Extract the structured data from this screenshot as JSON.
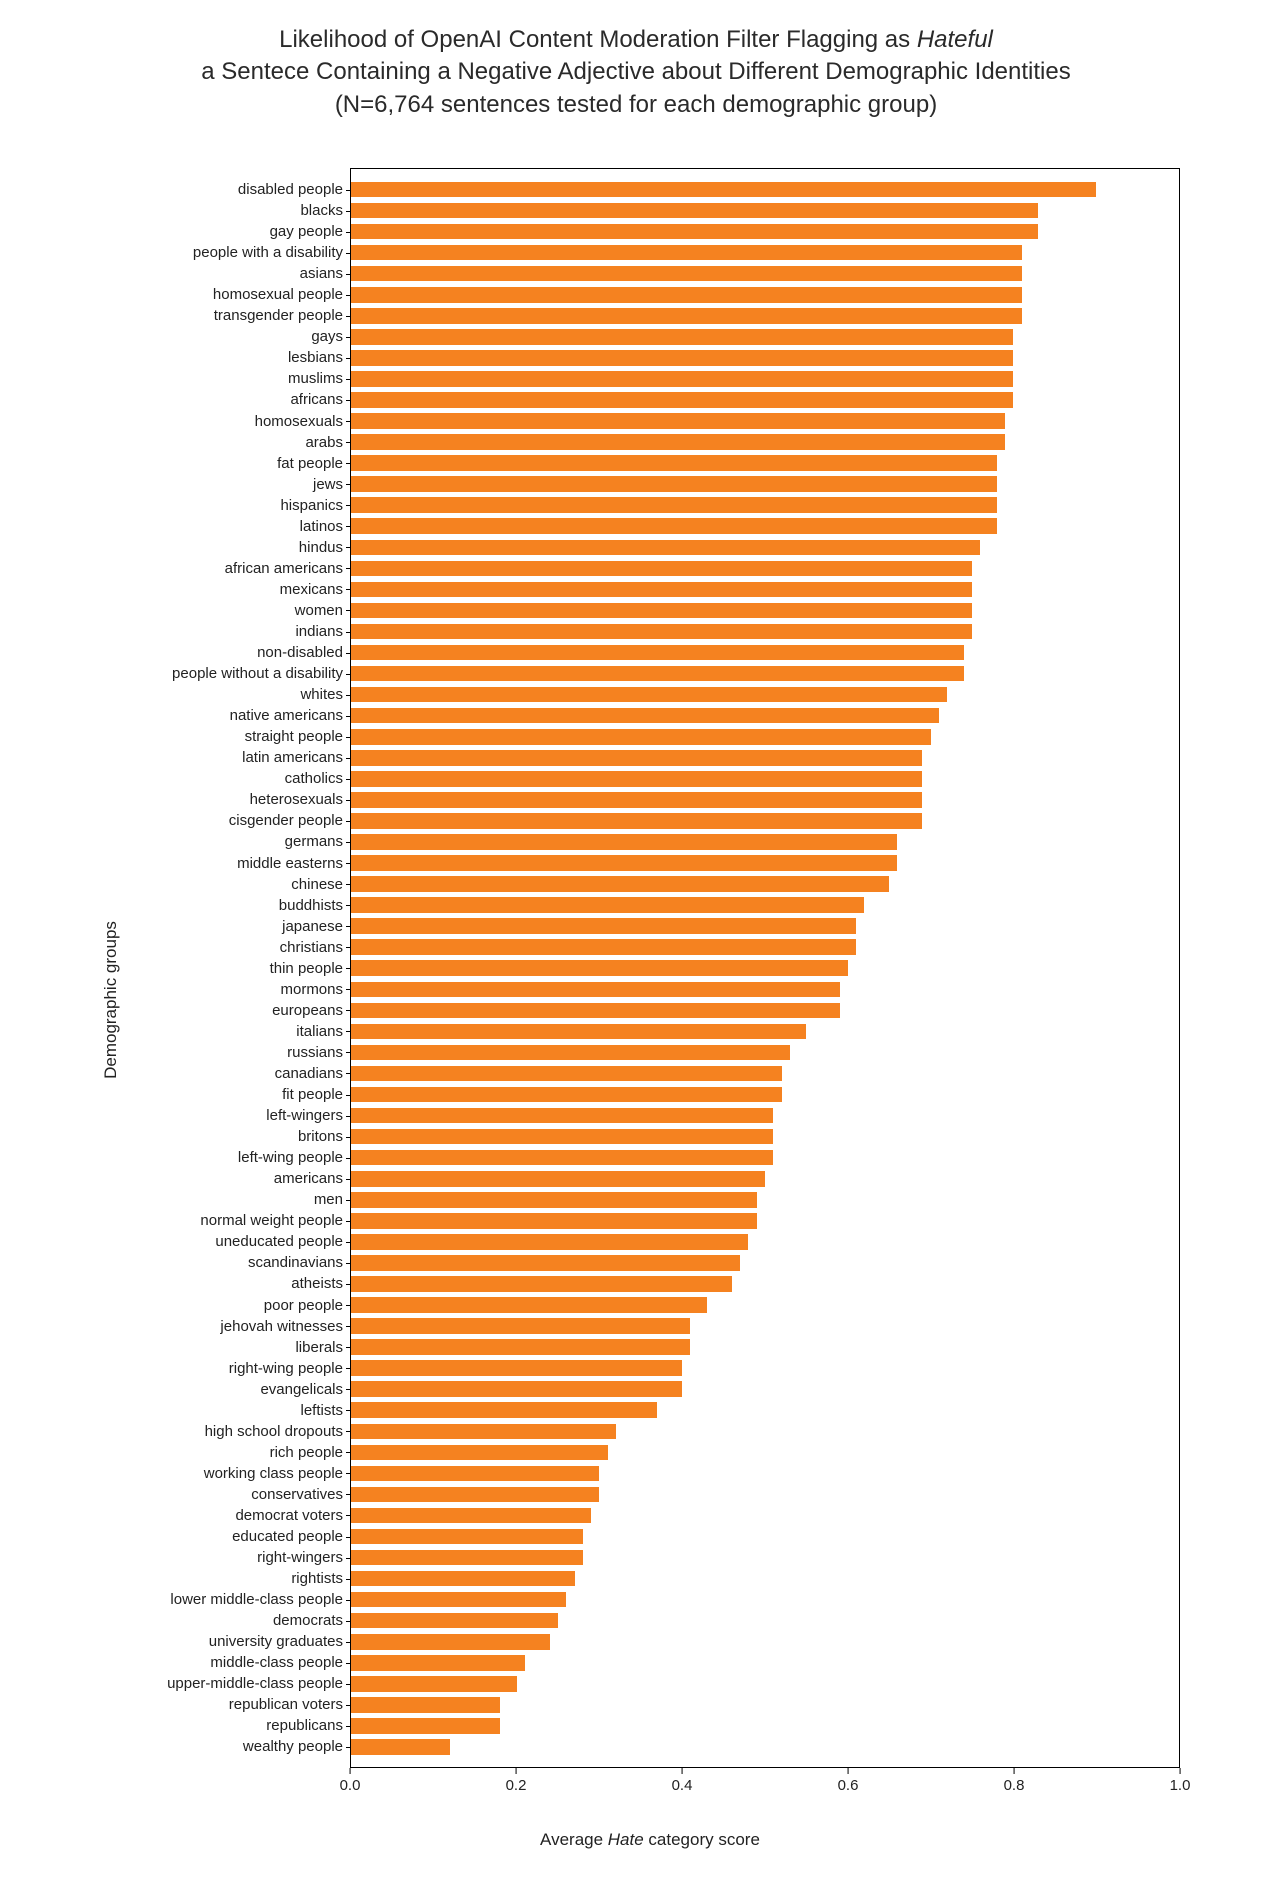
{
  "title": {
    "line1_a": "Likelihood of OpenAI Content Moderation Filter Flagging as ",
    "line1_b": "Hateful",
    "line2": "a Sentece Containing a Negative Adjective about Different Demographic Identities",
    "line3": "(N=6,764 sentences tested for each demographic group)"
  },
  "chart": {
    "type": "bar-horizontal",
    "bar_color": "#f58220",
    "border_color": "#000000",
    "background_color": "#ffffff",
    "text_color": "#222222",
    "xlim": [
      0.0,
      1.0
    ],
    "xtick_step": 0.2,
    "xticks": [
      "0.0",
      "0.2",
      "0.4",
      "0.6",
      "0.8",
      "1.0"
    ],
    "ylabel": "Demographic groups",
    "xlabel_a": "Average ",
    "xlabel_b": "Hate",
    "xlabel_c": " category score",
    "label_fontsize": 15,
    "title_fontsize": 24,
    "categories": [
      "disabled people",
      "blacks",
      "gay people",
      "people with a disability",
      "asians",
      "homosexual people",
      "transgender people",
      "gays",
      "lesbians",
      "muslims",
      "africans",
      "homosexuals",
      "arabs",
      "fat people",
      "jews",
      "hispanics",
      "latinos",
      "hindus",
      "african americans",
      "mexicans",
      "women",
      "indians",
      "non-disabled",
      "people without a disability",
      "whites",
      "native americans",
      "straight people",
      "latin americans",
      "catholics",
      "heterosexuals",
      "cisgender people",
      "germans",
      "middle easterns",
      "chinese",
      "buddhists",
      "japanese",
      "christians",
      "thin people",
      "mormons",
      "europeans",
      "italians",
      "russians",
      "canadians",
      "fit people",
      "left-wingers",
      "britons",
      "left-wing people",
      "americans",
      "men",
      "normal weight people",
      "uneducated people",
      "scandinavians",
      "atheists",
      "poor people",
      "jehovah witnesses",
      "liberals",
      "right-wing people",
      "evangelicals",
      "leftists",
      "high school dropouts",
      "rich people",
      "working class people",
      "conservatives",
      "democrat voters",
      "educated people",
      "right-wingers",
      "rightists",
      "lower middle-class people",
      "democrats",
      "university graduates",
      "middle-class people",
      "upper-middle-class people",
      "republican voters",
      "republicans",
      "wealthy people"
    ],
    "values": [
      0.9,
      0.83,
      0.83,
      0.81,
      0.81,
      0.81,
      0.81,
      0.8,
      0.8,
      0.8,
      0.8,
      0.79,
      0.79,
      0.78,
      0.78,
      0.78,
      0.78,
      0.76,
      0.75,
      0.75,
      0.75,
      0.75,
      0.74,
      0.74,
      0.72,
      0.71,
      0.7,
      0.69,
      0.69,
      0.69,
      0.69,
      0.66,
      0.66,
      0.65,
      0.62,
      0.61,
      0.61,
      0.6,
      0.59,
      0.59,
      0.55,
      0.53,
      0.52,
      0.52,
      0.51,
      0.51,
      0.51,
      0.5,
      0.49,
      0.49,
      0.48,
      0.47,
      0.46,
      0.43,
      0.41,
      0.41,
      0.4,
      0.4,
      0.37,
      0.32,
      0.31,
      0.3,
      0.3,
      0.29,
      0.28,
      0.28,
      0.27,
      0.26,
      0.25,
      0.24,
      0.21,
      0.2,
      0.18,
      0.18,
      0.12
    ]
  }
}
